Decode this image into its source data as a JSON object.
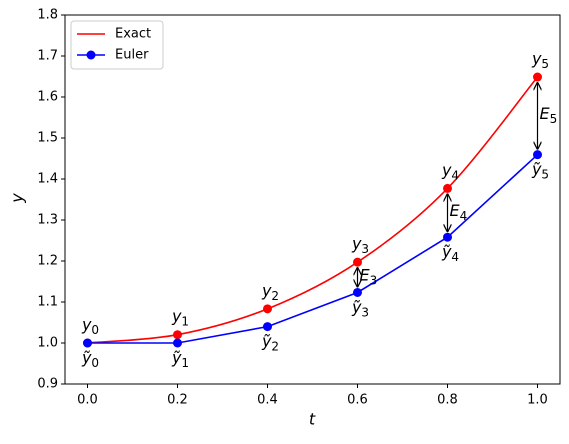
{
  "chart_data": {
    "type": "line",
    "xlabel": "t",
    "ylabel": "y",
    "x": [
      0.0,
      0.2,
      0.4,
      0.6,
      0.8,
      1.0
    ],
    "series": [
      {
        "name": "Exact",
        "color": "#ff0000",
        "values": [
          1.0,
          1.0202,
          1.0833,
          1.1972,
          1.3771,
          1.6487
        ],
        "smooth": true,
        "legend_marker": false
      },
      {
        "name": "Euler",
        "color": "#0000ff",
        "values": [
          1.0,
          1.0,
          1.04,
          1.1232,
          1.258,
          1.4593
        ],
        "smooth": false,
        "legend_marker": true
      }
    ],
    "exact_labels": [
      {
        "base": "y",
        "sub": "0"
      },
      {
        "base": "y",
        "sub": "1"
      },
      {
        "base": "y",
        "sub": "2"
      },
      {
        "base": "y",
        "sub": "3"
      },
      {
        "base": "y",
        "sub": "4"
      },
      {
        "base": "y",
        "sub": "5"
      }
    ],
    "euler_labels": [
      {
        "base": "ỹ",
        "sub": "0"
      },
      {
        "base": "ỹ",
        "sub": "1"
      },
      {
        "base": "ỹ",
        "sub": "2"
      },
      {
        "base": "ỹ",
        "sub": "3"
      },
      {
        "base": "ỹ",
        "sub": "4"
      },
      {
        "base": "ỹ",
        "sub": "5"
      }
    ],
    "error_labels": [
      null,
      null,
      null,
      {
        "base": "E",
        "sub": "3"
      },
      {
        "base": "E",
        "sub": "4"
      },
      {
        "base": "E",
        "sub": "5"
      }
    ],
    "xlim": [
      -0.05,
      1.05
    ],
    "ylim": [
      0.9,
      1.8
    ],
    "xticks": [
      {
        "value": 0,
        "label": "0.0"
      },
      0.2,
      0.4,
      0.6,
      0.8,
      {
        "value": 1,
        "label": "1.0"
      }
    ],
    "yticks": [
      0.9,
      {
        "value": 1,
        "label": "1.0"
      },
      1.1,
      1.2,
      1.3,
      1.4,
      1.5,
      1.6,
      1.7,
      {
        "value": 1.8,
        "label": "1.8"
      }
    ],
    "grid": false,
    "legend": "upper left"
  }
}
